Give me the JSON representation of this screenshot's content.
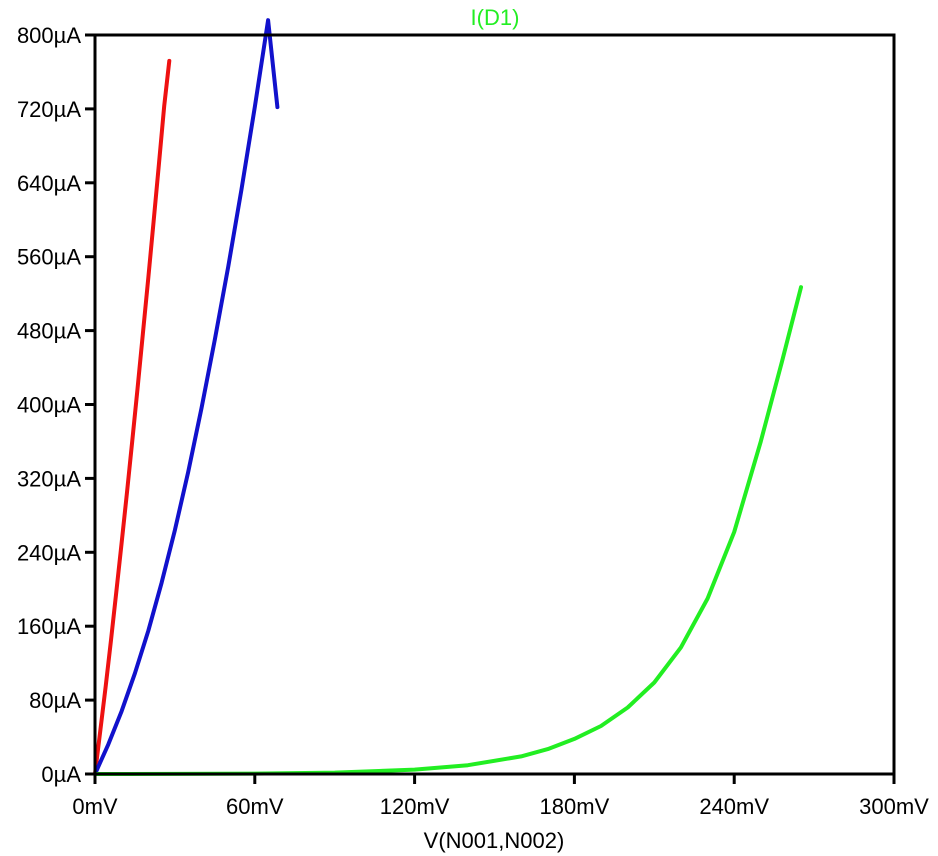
{
  "chart_data": {
    "type": "line",
    "title": "I(D1)",
    "title_color": "#22ee22",
    "xlabel": "V(N001,N002)",
    "ylabel": "",
    "x_unit": "mV",
    "y_unit": "µA",
    "xlim": [
      0,
      300
    ],
    "ylim": [
      0,
      800
    ],
    "x_ticks": [
      0,
      60,
      120,
      180,
      240,
      300
    ],
    "y_ticks": [
      0,
      80,
      160,
      240,
      320,
      400,
      480,
      560,
      640,
      720,
      800
    ],
    "x_tick_labels": [
      "0mV",
      "60mV",
      "120mV",
      "180mV",
      "240mV",
      "300mV"
    ],
    "y_tick_labels": [
      "0µA",
      "80µA",
      "160µA",
      "240µA",
      "320µA",
      "400µA",
      "480µA",
      "560µA",
      "640µA",
      "720µA",
      "800µA"
    ],
    "grid": false,
    "legend": "none",
    "series": [
      {
        "color": "#ee1111",
        "x": [
          0,
          2,
          4,
          6,
          8,
          10,
          12,
          14,
          16,
          18,
          20,
          22,
          24,
          26,
          27.9
        ],
        "y": [
          0,
          47,
          95,
          145,
          197,
          250,
          305,
          361,
          418,
          477,
          537,
          598,
          660,
          723,
          772
        ]
      },
      {
        "color": "#1111cc",
        "x": [
          0,
          5,
          10,
          15,
          20,
          25,
          30,
          35,
          40,
          45,
          50,
          55,
          60,
          65,
          68.5
        ],
        "y": [
          0,
          32,
          68,
          109,
          155,
          207,
          264,
          327,
          396,
          470,
          549,
          633,
          722,
          816,
          722
        ]
      },
      {
        "color": "#22ee22",
        "x": [
          0,
          30,
          60,
          90,
          120,
          140,
          160,
          170,
          180,
          190,
          200,
          210,
          220,
          230,
          240,
          250,
          258,
          265.1
        ],
        "y": [
          0,
          0.1,
          0.4,
          1.5,
          4.8,
          9.5,
          19,
          27,
          38,
          52,
          72,
          99,
          137,
          190,
          262,
          360,
          447,
          527
        ]
      }
    ]
  }
}
